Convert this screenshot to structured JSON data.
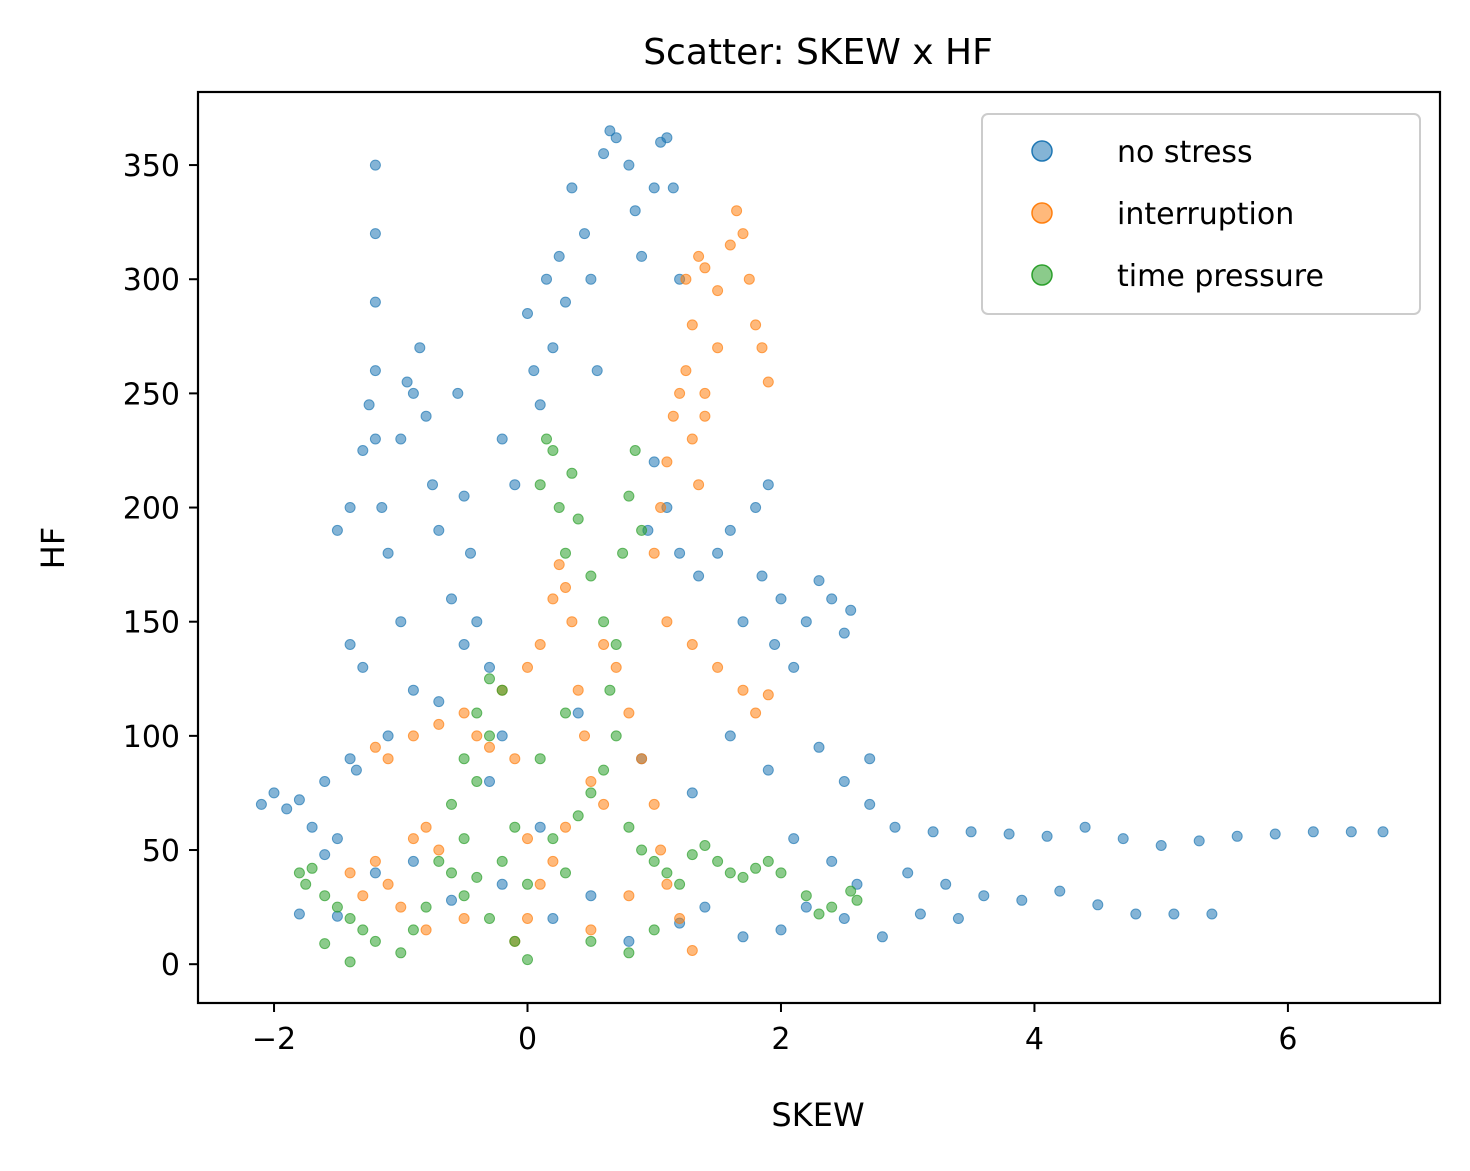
{
  "chart_data": {
    "type": "scatter",
    "title": "Scatter: SKEW x HF",
    "xlabel": "SKEW",
    "ylabel": "HF",
    "xlim": [
      -2.6,
      7.2
    ],
    "ylim": [
      -17,
      382
    ],
    "xticks": [
      -2,
      0,
      2,
      4,
      6
    ],
    "xtick_labels": [
      "−2",
      "0",
      "2",
      "4",
      "6"
    ],
    "yticks": [
      0,
      50,
      100,
      150,
      200,
      250,
      300,
      350
    ],
    "ytick_labels": [
      "0",
      "50",
      "100",
      "150",
      "200",
      "250",
      "300",
      "350"
    ],
    "grid": false,
    "legend_position": "top-right",
    "series": [
      {
        "name": "no stress",
        "color": "#1f77b4",
        "points": [
          [
            -2.1,
            70
          ],
          [
            -2.0,
            75
          ],
          [
            -1.9,
            68
          ],
          [
            -1.8,
            72
          ],
          [
            -1.6,
            80
          ],
          [
            -1.7,
            60
          ],
          [
            -1.5,
            55
          ],
          [
            -1.4,
            90
          ],
          [
            -1.3,
            130
          ],
          [
            -1.4,
            140
          ],
          [
            -1.5,
            190
          ],
          [
            -1.4,
            200
          ],
          [
            -1.2,
            350
          ],
          [
            -1.2,
            320
          ],
          [
            -1.2,
            290
          ],
          [
            -1.2,
            260
          ],
          [
            -1.2,
            230
          ],
          [
            -1.15,
            200
          ],
          [
            -1.3,
            225
          ],
          [
            -1.25,
            245
          ],
          [
            -1.1,
            180
          ],
          [
            -1.0,
            150
          ],
          [
            -0.9,
            120
          ],
          [
            -0.85,
            270
          ],
          [
            -0.8,
            240
          ],
          [
            -0.75,
            210
          ],
          [
            -0.7,
            190
          ],
          [
            -0.6,
            160
          ],
          [
            -0.5,
            140
          ],
          [
            -0.9,
            250
          ],
          [
            -1.0,
            230
          ],
          [
            -0.95,
            255
          ],
          [
            -0.55,
            250
          ],
          [
            -0.5,
            205
          ],
          [
            -0.45,
            180
          ],
          [
            -0.4,
            150
          ],
          [
            -0.3,
            130
          ],
          [
            -0.2,
            230
          ],
          [
            -0.1,
            210
          ],
          [
            0.0,
            285
          ],
          [
            0.05,
            260
          ],
          [
            0.1,
            245
          ],
          [
            0.15,
            300
          ],
          [
            0.2,
            270
          ],
          [
            0.25,
            310
          ],
          [
            0.3,
            290
          ],
          [
            0.35,
            340
          ],
          [
            0.45,
            320
          ],
          [
            0.5,
            300
          ],
          [
            0.55,
            260
          ],
          [
            0.6,
            355
          ],
          [
            0.65,
            365
          ],
          [
            0.7,
            362
          ],
          [
            0.8,
            350
          ],
          [
            0.85,
            330
          ],
          [
            0.9,
            310
          ],
          [
            1.0,
            340
          ],
          [
            1.05,
            360
          ],
          [
            1.1,
            362
          ],
          [
            1.15,
            340
          ],
          [
            1.2,
            300
          ],
          [
            1.0,
            220
          ],
          [
            0.95,
            190
          ],
          [
            1.1,
            200
          ],
          [
            1.2,
            180
          ],
          [
            1.35,
            170
          ],
          [
            1.5,
            180
          ],
          [
            1.6,
            190
          ],
          [
            1.8,
            200
          ],
          [
            1.9,
            210
          ],
          [
            1.85,
            170
          ],
          [
            1.7,
            150
          ],
          [
            2.0,
            160
          ],
          [
            2.2,
            150
          ],
          [
            2.3,
            168
          ],
          [
            2.4,
            160
          ],
          [
            2.5,
            145
          ],
          [
            2.55,
            155
          ],
          [
            1.95,
            140
          ],
          [
            2.1,
            130
          ],
          [
            2.3,
            95
          ],
          [
            2.5,
            80
          ],
          [
            2.7,
            90
          ],
          [
            2.7,
            70
          ],
          [
            2.9,
            60
          ],
          [
            3.2,
            58
          ],
          [
            3.5,
            58
          ],
          [
            3.8,
            57
          ],
          [
            4.1,
            56
          ],
          [
            4.4,
            60
          ],
          [
            4.7,
            55
          ],
          [
            5.0,
            52
          ],
          [
            5.3,
            54
          ],
          [
            5.6,
            56
          ],
          [
            5.9,
            57
          ],
          [
            6.2,
            58
          ],
          [
            6.5,
            58
          ],
          [
            6.75,
            58
          ],
          [
            3.0,
            40
          ],
          [
            3.3,
            35
          ],
          [
            3.6,
            30
          ],
          [
            3.9,
            28
          ],
          [
            4.2,
            32
          ],
          [
            4.5,
            26
          ],
          [
            4.8,
            22
          ],
          [
            5.1,
            22
          ],
          [
            5.4,
            22
          ],
          [
            3.1,
            22
          ],
          [
            3.4,
            20
          ],
          [
            2.8,
            12
          ],
          [
            2.5,
            20
          ],
          [
            2.2,
            25
          ],
          [
            2.0,
            15
          ],
          [
            1.7,
            12
          ],
          [
            1.4,
            25
          ],
          [
            1.2,
            18
          ],
          [
            0.8,
            10
          ],
          [
            0.5,
            30
          ],
          [
            0.2,
            20
          ],
          [
            -0.2,
            35
          ],
          [
            -0.6,
            28
          ],
          [
            -0.9,
            45
          ],
          [
            -1.2,
            40
          ],
          [
            -1.5,
            21
          ],
          [
            -1.8,
            22
          ],
          [
            -0.3,
            80
          ],
          [
            0.1,
            60
          ],
          [
            0.4,
            110
          ],
          [
            0.9,
            90
          ],
          [
            1.3,
            75
          ],
          [
            1.6,
            100
          ],
          [
            1.9,
            85
          ],
          [
            2.1,
            55
          ],
          [
            2.4,
            45
          ],
          [
            2.6,
            35
          ],
          [
            -0.2,
            100
          ],
          [
            -0.7,
            115
          ],
          [
            -1.1,
            100
          ],
          [
            -1.35,
            85
          ],
          [
            -1.6,
            48
          ]
        ]
      },
      {
        "name": "interruption",
        "color": "#ff7f0e",
        "points": [
          [
            -1.4,
            40
          ],
          [
            -1.3,
            30
          ],
          [
            -1.2,
            45
          ],
          [
            -1.1,
            35
          ],
          [
            -1.0,
            25
          ],
          [
            -0.9,
            55
          ],
          [
            -0.8,
            60
          ],
          [
            -0.7,
            50
          ],
          [
            -1.2,
            95
          ],
          [
            -1.1,
            90
          ],
          [
            -0.9,
            100
          ],
          [
            -0.7,
            105
          ],
          [
            -0.5,
            110
          ],
          [
            -0.4,
            100
          ],
          [
            -0.3,
            95
          ],
          [
            -0.2,
            120
          ],
          [
            -0.1,
            90
          ],
          [
            0.0,
            130
          ],
          [
            0.1,
            140
          ],
          [
            0.2,
            160
          ],
          [
            0.25,
            175
          ],
          [
            0.3,
            165
          ],
          [
            0.35,
            150
          ],
          [
            0.4,
            120
          ],
          [
            0.45,
            100
          ],
          [
            0.5,
            80
          ],
          [
            0.3,
            60
          ],
          [
            0.2,
            45
          ],
          [
            0.1,
            35
          ],
          [
            0.0,
            20
          ],
          [
            -0.1,
            10
          ],
          [
            0.6,
            140
          ],
          [
            0.7,
            130
          ],
          [
            0.8,
            110
          ],
          [
            0.9,
            90
          ],
          [
            1.0,
            70
          ],
          [
            1.05,
            50
          ],
          [
            1.1,
            35
          ],
          [
            1.2,
            20
          ],
          [
            1.3,
            6
          ],
          [
            1.0,
            180
          ],
          [
            1.05,
            200
          ],
          [
            1.1,
            220
          ],
          [
            1.15,
            240
          ],
          [
            1.2,
            250
          ],
          [
            1.25,
            260
          ],
          [
            1.3,
            280
          ],
          [
            1.25,
            300
          ],
          [
            1.35,
            310
          ],
          [
            1.4,
            305
          ],
          [
            1.5,
            295
          ],
          [
            1.6,
            315
          ],
          [
            1.65,
            330
          ],
          [
            1.7,
            320
          ],
          [
            1.75,
            300
          ],
          [
            1.8,
            280
          ],
          [
            1.85,
            270
          ],
          [
            1.9,
            255
          ],
          [
            1.5,
            270
          ],
          [
            1.4,
            250
          ],
          [
            1.3,
            230
          ],
          [
            1.35,
            210
          ],
          [
            1.4,
            240
          ],
          [
            1.1,
            150
          ],
          [
            1.3,
            140
          ],
          [
            1.5,
            130
          ],
          [
            1.7,
            120
          ],
          [
            1.8,
            110
          ],
          [
            1.9,
            118
          ],
          [
            0.8,
            30
          ],
          [
            0.5,
            15
          ],
          [
            -0.5,
            20
          ],
          [
            -0.8,
            15
          ],
          [
            0.0,
            55
          ],
          [
            0.6,
            70
          ]
        ]
      },
      {
        "name": "time pressure",
        "color": "#2ca02c",
        "points": [
          [
            -1.8,
            40
          ],
          [
            -1.75,
            35
          ],
          [
            -1.7,
            42
          ],
          [
            -1.6,
            30
          ],
          [
            -1.5,
            25
          ],
          [
            -1.4,
            20
          ],
          [
            -1.3,
            15
          ],
          [
            -1.2,
            10
          ],
          [
            -1.4,
            1
          ],
          [
            -1.6,
            9
          ],
          [
            -1.0,
            5
          ],
          [
            -0.9,
            15
          ],
          [
            -0.8,
            25
          ],
          [
            -0.7,
            45
          ],
          [
            -0.6,
            70
          ],
          [
            -0.5,
            90
          ],
          [
            -0.4,
            110
          ],
          [
            -0.3,
            125
          ],
          [
            -0.2,
            120
          ],
          [
            -0.3,
            100
          ],
          [
            -0.4,
            80
          ],
          [
            -0.5,
            55
          ],
          [
            -0.6,
            40
          ],
          [
            -0.5,
            30
          ],
          [
            -0.3,
            20
          ],
          [
            -0.1,
            10
          ],
          [
            0.0,
            2
          ],
          [
            0.1,
            210
          ],
          [
            0.15,
            230
          ],
          [
            0.2,
            225
          ],
          [
            0.25,
            200
          ],
          [
            0.3,
            180
          ],
          [
            0.35,
            215
          ],
          [
            0.4,
            195
          ],
          [
            0.5,
            170
          ],
          [
            0.6,
            150
          ],
          [
            0.65,
            120
          ],
          [
            0.7,
            140
          ],
          [
            0.75,
            180
          ],
          [
            0.8,
            205
          ],
          [
            0.85,
            225
          ],
          [
            0.9,
            190
          ],
          [
            0.7,
            100
          ],
          [
            0.6,
            85
          ],
          [
            0.5,
            75
          ],
          [
            0.4,
            65
          ],
          [
            0.8,
            60
          ],
          [
            0.9,
            50
          ],
          [
            1.0,
            45
          ],
          [
            1.1,
            40
          ],
          [
            1.2,
            35
          ],
          [
            1.3,
            48
          ],
          [
            1.4,
            52
          ],
          [
            1.5,
            45
          ],
          [
            1.6,
            40
          ],
          [
            1.7,
            38
          ],
          [
            1.8,
            42
          ],
          [
            1.9,
            45
          ],
          [
            2.0,
            40
          ],
          [
            2.2,
            30
          ],
          [
            2.4,
            25
          ],
          [
            2.55,
            32
          ],
          [
            2.6,
            28
          ],
          [
            2.3,
            22
          ],
          [
            0.3,
            40
          ],
          [
            0.2,
            55
          ],
          [
            0.0,
            35
          ],
          [
            -0.2,
            45
          ],
          [
            -0.4,
            38
          ],
          [
            0.5,
            10
          ],
          [
            0.8,
            5
          ],
          [
            1.0,
            15
          ],
          [
            0.1,
            90
          ],
          [
            0.3,
            110
          ],
          [
            -0.1,
            60
          ]
        ]
      }
    ]
  }
}
